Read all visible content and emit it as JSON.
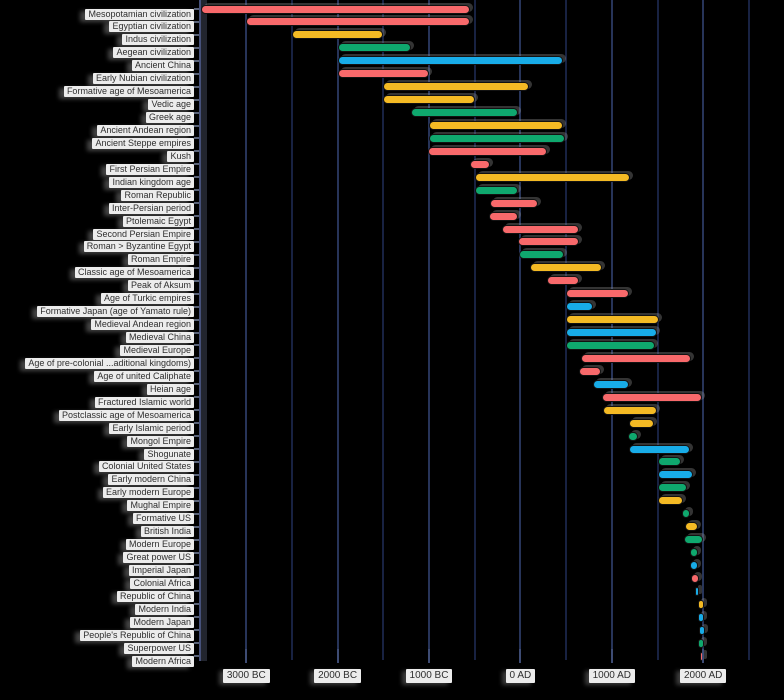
{
  "palette": {
    "red": "#F8696B",
    "yellow": "#F4BA24",
    "green": "#0FA86E",
    "blue": "#18ACE8",
    "background": "#000000",
    "gridline_minor": "#182242",
    "gridline_major": "#273459",
    "label_chip_bg": "#ECECEC",
    "label_text": "#2E2E2E"
  },
  "chart_data": {
    "type": "bar",
    "variant": "horizontal-gantt-timeline",
    "title": "",
    "xlabel": "",
    "ylabel": "",
    "axis_range_years": [
      -3500,
      2880
    ],
    "gridline_interval_years": 500,
    "grid": "on",
    "legend": "none",
    "x_ticks": [
      {
        "label": "3000 BC",
        "year": -3000
      },
      {
        "label": "2000 BC",
        "year": -2000
      },
      {
        "label": "1000 BC",
        "year": -1000
      },
      {
        "label": "0 AD",
        "year": 0
      },
      {
        "label": "1000 AD",
        "year": 1000
      },
      {
        "label": "2000 AD",
        "year": 2000
      }
    ],
    "rows": [
      {
        "label": "Mesopotamian civilization",
        "start": -3500,
        "end": -550,
        "color": "red"
      },
      {
        "label": "Egyptian civilization",
        "start": -3000,
        "end": -550,
        "color": "red"
      },
      {
        "label": "Indus civilization",
        "start": -2500,
        "end": -1500,
        "color": "yellow"
      },
      {
        "label": "Aegean civilization",
        "start": -2000,
        "end": -1200,
        "color": "green"
      },
      {
        "label": "Ancient China",
        "start": -2000,
        "end": 470,
        "color": "blue"
      },
      {
        "label": "Early Nubian civilization",
        "start": -2000,
        "end": -1000,
        "color": "red"
      },
      {
        "label": "Formative age of Mesoamerica",
        "start": -1500,
        "end": 100,
        "color": "yellow"
      },
      {
        "label": "Vedic age",
        "start": -1500,
        "end": -500,
        "color": "yellow"
      },
      {
        "label": "Greek age",
        "start": -1200,
        "end": -30,
        "color": "green"
      },
      {
        "label": "Ancient Andean region",
        "start": -1000,
        "end": 470,
        "color": "yellow"
      },
      {
        "label": "Ancient Steppe empires",
        "start": -1000,
        "end": 490,
        "color": "green"
      },
      {
        "label": "Kush",
        "start": -1010,
        "end": 290,
        "color": "red"
      },
      {
        "label": "First Persian Empire",
        "start": -550,
        "end": -330,
        "color": "red"
      },
      {
        "label": "Indian kingdom age",
        "start": -500,
        "end": 1200,
        "color": "yellow"
      },
      {
        "label": "Roman Republic",
        "start": -500,
        "end": -30,
        "color": "green"
      },
      {
        "label": "Inter-Persian period",
        "start": -330,
        "end": 190,
        "color": "red"
      },
      {
        "label": "Ptolemaic Egypt",
        "start": -340,
        "end": -30,
        "color": "red"
      },
      {
        "label": "Second Persian Empire",
        "start": -200,
        "end": 640,
        "color": "red"
      },
      {
        "label": "Roman > Byzantine Egypt",
        "start": -30,
        "end": 640,
        "color": "red"
      },
      {
        "label": "Roman Empire",
        "start": -20,
        "end": 480,
        "color": "green"
      },
      {
        "label": "Classic age of Mesoamerica",
        "start": 100,
        "end": 890,
        "color": "yellow"
      },
      {
        "label": "Peak of Aksum",
        "start": 290,
        "end": 640,
        "color": "red"
      },
      {
        "label": "Age of Turkic empires",
        "start": 500,
        "end": 1190,
        "color": "red"
      },
      {
        "label": "Formative Japan (age of Yamato rule)",
        "start": 500,
        "end": 790,
        "color": "blue"
      },
      {
        "label": "Medieval Andean region",
        "start": 500,
        "end": 1520,
        "color": "yellow"
      },
      {
        "label": "Medieval China",
        "start": 500,
        "end": 1500,
        "color": "blue"
      },
      {
        "label": "Medieval Europe",
        "start": 500,
        "end": 1470,
        "color": "green"
      },
      {
        "label": "Age of pre-colonial ...aditional kingdoms)",
        "start": 660,
        "end": 1870,
        "color": "red"
      },
      {
        "label": "Age of united Caliphate",
        "start": 640,
        "end": 880,
        "color": "red"
      },
      {
        "label": "Heian age",
        "start": 790,
        "end": 1190,
        "color": "blue"
      },
      {
        "label": "Fractured Islamic world",
        "start": 890,
        "end": 1990,
        "color": "red"
      },
      {
        "label": "Postclassic age of Mesoamerica",
        "start": 900,
        "end": 1500,
        "color": "yellow"
      },
      {
        "label": "Early Islamic period",
        "start": 1190,
        "end": 1460,
        "color": "yellow"
      },
      {
        "label": "Mongol Empire",
        "start": 1180,
        "end": 1290,
        "color": "green"
      },
      {
        "label": "Shogunate",
        "start": 1190,
        "end": 1860,
        "color": "blue"
      },
      {
        "label": "Colonial United States",
        "start": 1500,
        "end": 1760,
        "color": "green"
      },
      {
        "label": "Early modern China",
        "start": 1500,
        "end": 1890,
        "color": "blue"
      },
      {
        "label": "Early modern Europe",
        "start": 1500,
        "end": 1820,
        "color": "green"
      },
      {
        "label": "Mughal Empire",
        "start": 1500,
        "end": 1780,
        "color": "yellow"
      },
      {
        "label": "Formative US",
        "start": 1770,
        "end": 1860,
        "color": "green"
      },
      {
        "label": "British India",
        "start": 1800,
        "end": 1940,
        "color": "yellow"
      },
      {
        "label": "Modern Europe",
        "start": 1790,
        "end": 2000,
        "color": "green"
      },
      {
        "label": "Great power US",
        "start": 1850,
        "end": 1945,
        "color": "green"
      },
      {
        "label": "Imperial Japan",
        "start": 1860,
        "end": 1945,
        "color": "blue"
      },
      {
        "label": "Colonial Africa",
        "start": 1870,
        "end": 1960,
        "color": "red"
      },
      {
        "label": "Republic of China",
        "start": 1912,
        "end": 1950,
        "color": "blue"
      },
      {
        "label": "Modern India",
        "start": 1947,
        "end": 2010,
        "color": "yellow"
      },
      {
        "label": "Modern Japan",
        "start": 1945,
        "end": 2015,
        "color": "blue"
      },
      {
        "label": "People's Republic of China",
        "start": 1949,
        "end": 2015,
        "color": "blue"
      },
      {
        "label": "Superpower US",
        "start": 1945,
        "end": 2015,
        "color": "green"
      },
      {
        "label": "Modern Africa",
        "start": 1960,
        "end": 2005,
        "color": "red"
      }
    ]
  }
}
